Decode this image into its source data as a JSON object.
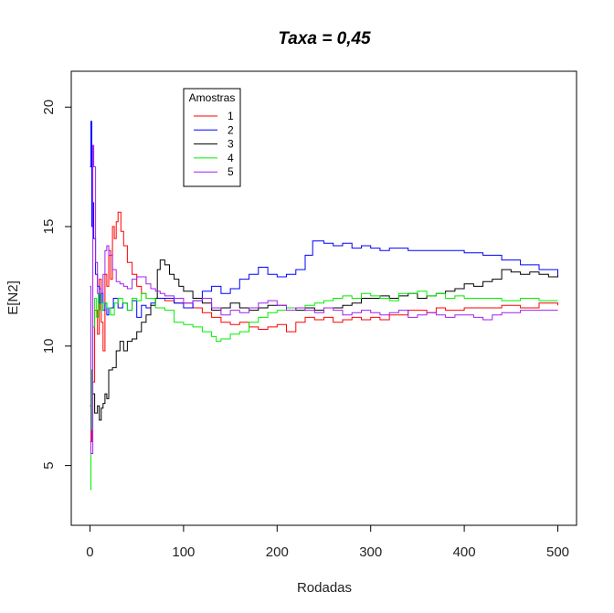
{
  "chart_data": {
    "type": "line",
    "title": "Taxa = 0,45",
    "xlabel": "Rodadas",
    "ylabel": "E[N2]",
    "xlim": [
      -20,
      520
    ],
    "ylim": [
      2.5,
      21.5
    ],
    "xticks": [
      0,
      100,
      200,
      300,
      400,
      500
    ],
    "yticks": [
      5,
      10,
      15,
      20
    ],
    "grid": false,
    "legend": {
      "title": "Amostras",
      "position": "top-left"
    },
    "series": [
      {
        "name": "1",
        "color": "#ff0000",
        "points": [
          [
            0,
            6
          ],
          [
            2,
            8.5
          ],
          [
            5,
            11.5
          ],
          [
            8,
            10.5
          ],
          [
            10,
            12.8
          ],
          [
            12,
            11
          ],
          [
            14,
            9.8
          ],
          [
            16,
            13
          ],
          [
            18,
            12.5
          ],
          [
            20,
            14
          ],
          [
            22,
            12.8
          ],
          [
            24,
            15
          ],
          [
            26,
            14.5
          ],
          [
            28,
            15.2
          ],
          [
            30,
            15.6
          ],
          [
            33,
            14.8
          ],
          [
            36,
            14.2
          ],
          [
            40,
            13.5
          ],
          [
            45,
            13
          ],
          [
            50,
            12.5
          ],
          [
            55,
            12.2
          ],
          [
            60,
            12
          ],
          [
            70,
            12
          ],
          [
            80,
            11.9
          ],
          [
            90,
            11.8
          ],
          [
            100,
            11.8
          ],
          [
            110,
            11.6
          ],
          [
            120,
            11.4
          ],
          [
            130,
            11.2
          ],
          [
            140,
            11
          ],
          [
            150,
            10.9
          ],
          [
            160,
            11
          ],
          [
            170,
            10.8
          ],
          [
            180,
            10.7
          ],
          [
            190,
            10.8
          ],
          [
            200,
            10.9
          ],
          [
            210,
            10.6
          ],
          [
            220,
            11
          ],
          [
            230,
            11.2
          ],
          [
            240,
            11.1
          ],
          [
            250,
            11.2
          ],
          [
            260,
            11
          ],
          [
            270,
            11.1
          ],
          [
            280,
            11.2
          ],
          [
            290,
            11.1
          ],
          [
            300,
            11.2
          ],
          [
            310,
            11.1
          ],
          [
            320,
            11.3
          ],
          [
            330,
            11.3
          ],
          [
            340,
            11.5
          ],
          [
            350,
            11.5
          ],
          [
            360,
            11.4
          ],
          [
            370,
            11.6
          ],
          [
            380,
            11.5
          ],
          [
            400,
            11.6
          ],
          [
            420,
            11.6
          ],
          [
            440,
            11.7
          ],
          [
            460,
            11.6
          ],
          [
            480,
            11.8
          ],
          [
            500,
            11.7
          ]
        ]
      },
      {
        "name": "2",
        "color": "#0000ff",
        "points": [
          [
            0,
            17.5
          ],
          [
            1,
            19.4
          ],
          [
            2,
            15
          ],
          [
            3,
            16
          ],
          [
            4,
            14.5
          ],
          [
            6,
            13
          ],
          [
            8,
            12.5
          ],
          [
            10,
            11.8
          ],
          [
            12,
            12.2
          ],
          [
            14,
            11.5
          ],
          [
            16,
            11.8
          ],
          [
            18,
            11.3
          ],
          [
            20,
            11.6
          ],
          [
            25,
            12
          ],
          [
            30,
            11.6
          ],
          [
            35,
            11.8
          ],
          [
            40,
            11.5
          ],
          [
            45,
            11.9
          ],
          [
            50,
            11.2
          ],
          [
            55,
            11.7
          ],
          [
            60,
            11.6
          ],
          [
            65,
            11.8
          ],
          [
            70,
            12
          ],
          [
            80,
            12
          ],
          [
            90,
            11.8
          ],
          [
            100,
            11.6
          ],
          [
            110,
            11.9
          ],
          [
            120,
            12.3
          ],
          [
            130,
            12.5
          ],
          [
            140,
            12.2
          ],
          [
            150,
            12.4
          ],
          [
            160,
            12.8
          ],
          [
            170,
            13
          ],
          [
            180,
            13.3
          ],
          [
            190,
            13
          ],
          [
            200,
            12.9
          ],
          [
            210,
            13
          ],
          [
            220,
            13.2
          ],
          [
            230,
            13.8
          ],
          [
            238,
            14.4
          ],
          [
            250,
            14.3
          ],
          [
            260,
            14.2
          ],
          [
            270,
            14.3
          ],
          [
            280,
            14.1
          ],
          [
            290,
            14.2
          ],
          [
            300,
            14.1
          ],
          [
            310,
            14
          ],
          [
            320,
            14.1
          ],
          [
            340,
            14
          ],
          [
            360,
            14
          ],
          [
            380,
            14
          ],
          [
            400,
            13.9
          ],
          [
            420,
            13.8
          ],
          [
            440,
            13.6
          ],
          [
            460,
            13.4
          ],
          [
            480,
            13.2
          ],
          [
            500,
            13
          ]
        ]
      },
      {
        "name": "3",
        "color": "#000000",
        "points": [
          [
            0,
            7.5
          ],
          [
            2,
            8
          ],
          [
            5,
            7.2
          ],
          [
            8,
            7.5
          ],
          [
            10,
            6.9
          ],
          [
            12,
            7.4
          ],
          [
            14,
            7.6
          ],
          [
            16,
            8
          ],
          [
            18,
            7.8
          ],
          [
            20,
            9
          ],
          [
            24,
            9.1
          ],
          [
            28,
            9.8
          ],
          [
            32,
            10.2
          ],
          [
            36,
            9.8
          ],
          [
            40,
            10.2
          ],
          [
            45,
            10.3
          ],
          [
            50,
            10.6
          ],
          [
            55,
            11
          ],
          [
            60,
            11.3
          ],
          [
            65,
            11.7
          ],
          [
            70,
            12
          ],
          [
            72,
            13.2
          ],
          [
            75,
            13.6
          ],
          [
            80,
            13.4
          ],
          [
            85,
            13
          ],
          [
            90,
            12.8
          ],
          [
            95,
            12.5
          ],
          [
            100,
            12.3
          ],
          [
            110,
            12
          ],
          [
            120,
            11.8
          ],
          [
            130,
            11.5
          ],
          [
            140,
            11.6
          ],
          [
            150,
            11.8
          ],
          [
            160,
            11.6
          ],
          [
            170,
            11.5
          ],
          [
            180,
            11.6
          ],
          [
            190,
            11.7
          ],
          [
            200,
            11.7
          ],
          [
            210,
            11.6
          ],
          [
            220,
            11.5
          ],
          [
            230,
            11.6
          ],
          [
            240,
            11.5
          ],
          [
            250,
            11.6
          ],
          [
            260,
            11.6
          ],
          [
            270,
            11.7
          ],
          [
            280,
            11.8
          ],
          [
            290,
            12
          ],
          [
            300,
            12
          ],
          [
            310,
            12.1
          ],
          [
            320,
            12
          ],
          [
            330,
            12.1
          ],
          [
            340,
            12.2
          ],
          [
            350,
            12
          ],
          [
            360,
            12.1
          ],
          [
            370,
            12.2
          ],
          [
            380,
            12.3
          ],
          [
            390,
            12.4
          ],
          [
            400,
            12.6
          ],
          [
            410,
            12.5
          ],
          [
            420,
            12.7
          ],
          [
            430,
            12.8
          ],
          [
            440,
            13.2
          ],
          [
            450,
            13.1
          ],
          [
            460,
            13
          ],
          [
            470,
            13.1
          ],
          [
            480,
            13
          ],
          [
            490,
            12.9
          ],
          [
            500,
            13
          ]
        ]
      },
      {
        "name": "4",
        "color": "#00ee00",
        "points": [
          [
            0,
            4
          ],
          [
            1,
            6.5
          ],
          [
            2,
            9
          ],
          [
            3,
            10.8
          ],
          [
            5,
            12
          ],
          [
            7,
            11.2
          ],
          [
            9,
            12.2
          ],
          [
            11,
            11.5
          ],
          [
            14,
            11.8
          ],
          [
            18,
            11.6
          ],
          [
            22,
            11.3
          ],
          [
            26,
            11.8
          ],
          [
            30,
            12
          ],
          [
            35,
            11.8
          ],
          [
            40,
            11.5
          ],
          [
            45,
            12
          ],
          [
            50,
            11.9
          ],
          [
            55,
            12.2
          ],
          [
            60,
            12
          ],
          [
            70,
            11.6
          ],
          [
            80,
            11.5
          ],
          [
            90,
            11
          ],
          [
            100,
            10.9
          ],
          [
            110,
            10.8
          ],
          [
            120,
            10.6
          ],
          [
            130,
            10.4
          ],
          [
            135,
            10.2
          ],
          [
            140,
            10.3
          ],
          [
            150,
            10.5
          ],
          [
            160,
            10.6
          ],
          [
            170,
            11
          ],
          [
            180,
            11.2
          ],
          [
            190,
            11.4
          ],
          [
            200,
            11.5
          ],
          [
            210,
            11.6
          ],
          [
            220,
            11.6
          ],
          [
            230,
            11.7
          ],
          [
            240,
            11.8
          ],
          [
            250,
            11.9
          ],
          [
            260,
            12
          ],
          [
            270,
            12.1
          ],
          [
            280,
            12
          ],
          [
            290,
            12.2
          ],
          [
            300,
            12.1
          ],
          [
            310,
            12
          ],
          [
            320,
            11.9
          ],
          [
            330,
            12.2
          ],
          [
            340,
            12.2
          ],
          [
            350,
            12.3
          ],
          [
            360,
            12.1
          ],
          [
            370,
            12.2
          ],
          [
            380,
            12
          ],
          [
            390,
            12.1
          ],
          [
            400,
            12
          ],
          [
            420,
            12
          ],
          [
            440,
            11.9
          ],
          [
            460,
            12
          ],
          [
            480,
            11.9
          ],
          [
            500,
            11.9
          ]
        ]
      },
      {
        "name": "5",
        "color": "#a020f0",
        "points": [
          [
            0,
            12.5
          ],
          [
            1,
            5.5
          ],
          [
            3,
            18.4
          ],
          [
            4,
            17.5
          ],
          [
            6,
            13.5
          ],
          [
            8,
            12.2
          ],
          [
            10,
            12.4
          ],
          [
            12,
            12.2
          ],
          [
            14,
            13
          ],
          [
            16,
            14
          ],
          [
            18,
            14.2
          ],
          [
            20,
            13.8
          ],
          [
            24,
            13.2
          ],
          [
            28,
            12.7
          ],
          [
            32,
            12.6
          ],
          [
            36,
            12.5
          ],
          [
            40,
            12.4
          ],
          [
            45,
            12.8
          ],
          [
            50,
            12.9
          ],
          [
            55,
            12.9
          ],
          [
            60,
            12.6
          ],
          [
            65,
            12.4
          ],
          [
            70,
            12.3
          ],
          [
            75,
            12.2
          ],
          [
            80,
            12.1
          ],
          [
            90,
            12
          ],
          [
            100,
            11.8
          ],
          [
            110,
            11.9
          ],
          [
            120,
            12
          ],
          [
            130,
            11.6
          ],
          [
            140,
            11.3
          ],
          [
            150,
            11.5
          ],
          [
            160,
            11.4
          ],
          [
            170,
            11.6
          ],
          [
            180,
            11.8
          ],
          [
            190,
            11.9
          ],
          [
            200,
            11.7
          ],
          [
            210,
            11.5
          ],
          [
            220,
            11.6
          ],
          [
            230,
            11.5
          ],
          [
            240,
            11.4
          ],
          [
            250,
            11.6
          ],
          [
            260,
            11.5
          ],
          [
            270,
            11.3
          ],
          [
            280,
            11.4
          ],
          [
            290,
            11.5
          ],
          [
            300,
            11.4
          ],
          [
            310,
            11.3
          ],
          [
            320,
            11.4
          ],
          [
            330,
            11.5
          ],
          [
            340,
            11.2
          ],
          [
            350,
            11.3
          ],
          [
            360,
            11.4
          ],
          [
            370,
            11.3
          ],
          [
            380,
            11.2
          ],
          [
            390,
            11.3
          ],
          [
            400,
            11.3
          ],
          [
            410,
            11.2
          ],
          [
            420,
            11.1
          ],
          [
            430,
            11.3
          ],
          [
            440,
            11.4
          ],
          [
            450,
            11.4
          ],
          [
            460,
            11.5
          ],
          [
            480,
            11.5
          ],
          [
            500,
            11.5
          ]
        ]
      }
    ]
  }
}
